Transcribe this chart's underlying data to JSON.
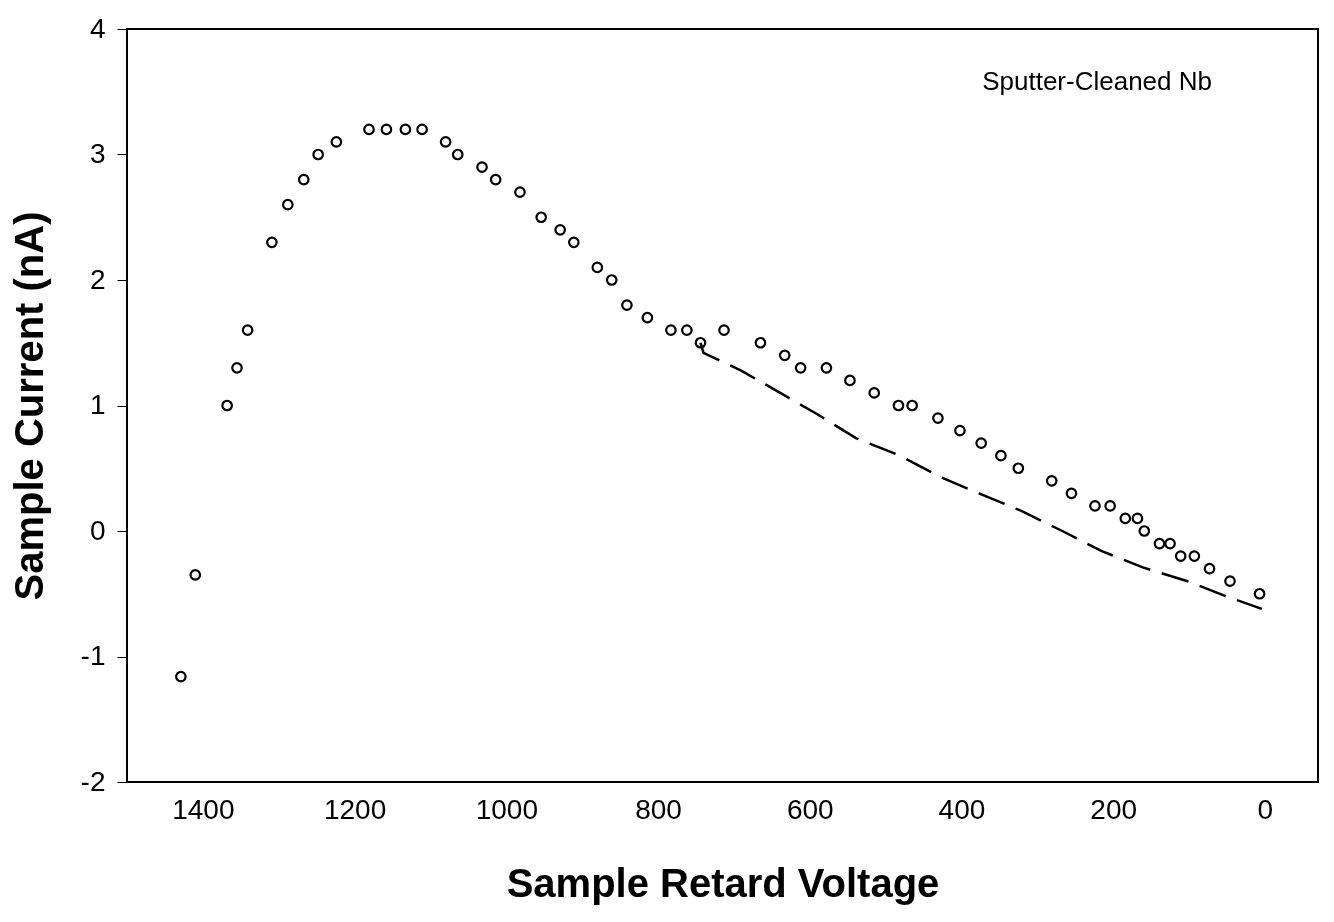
{
  "chart_data": {
    "type": "scatter",
    "xlabel": "Sample Retard Voltage",
    "ylabel": "Sample Current (nA)",
    "annotations": [
      "Sputter-Cleaned Nb"
    ],
    "xlim": [
      1500,
      -70
    ],
    "xticks": [
      1400,
      1200,
      1000,
      800,
      600,
      400,
      200,
      0
    ],
    "ylim": [
      -2,
      4
    ],
    "yticks": [
      -2,
      -1,
      0,
      1,
      2,
      3,
      4
    ],
    "grid": false,
    "series": [
      {
        "marker": "circle",
        "color": "#000000",
        "x": [
          1429,
          1410,
          1368,
          1355,
          1341,
          1309,
          1288,
          1267,
          1248,
          1224,
          1181,
          1158,
          1133,
          1111,
          1080,
          1064,
          1032,
          1014,
          982,
          954,
          929,
          911,
          880,
          861,
          841,
          814,
          783,
          762,
          744,
          713,
          665,
          633,
          612,
          578,
          547,
          515,
          483,
          465,
          431,
          402,
          374,
          348,
          325,
          281,
          255,
          224,
          204,
          184,
          168,
          159,
          139,
          125,
          111,
          93,
          73,
          46,
          7
        ],
        "values": [
          -1.16,
          -0.35,
          1.0,
          1.3,
          1.6,
          2.3,
          2.6,
          2.8,
          3.0,
          3.1,
          3.2,
          3.2,
          3.2,
          3.2,
          3.1,
          3.0,
          2.9,
          2.8,
          2.7,
          2.5,
          2.4,
          2.3,
          2.1,
          2.0,
          1.8,
          1.7,
          1.6,
          1.6,
          1.5,
          1.6,
          1.5,
          1.4,
          1.3,
          1.3,
          1.2,
          1.1,
          1.0,
          1.0,
          0.9,
          0.8,
          0.7,
          0.6,
          0.5,
          0.4,
          0.3,
          0.2,
          0.2,
          0.1,
          0.1,
          0.0,
          -0.1,
          -0.1,
          -0.2,
          -0.2,
          -0.3,
          -0.4,
          -0.5
        ]
      },
      {
        "type": "line",
        "line_style": "dashed",
        "color": "#000000",
        "x": [
          744,
          740,
          691,
          636,
          590,
          539,
          481,
          428,
          377,
          321,
          267,
          215,
          161,
          102,
          47,
          4
        ],
        "values": [
          1.5,
          1.42,
          1.28,
          1.09,
          0.93,
          0.74,
          0.6,
          0.43,
          0.3,
          0.16,
          0.0,
          -0.16,
          -0.29,
          -0.4,
          -0.53,
          -0.62
        ]
      }
    ]
  }
}
